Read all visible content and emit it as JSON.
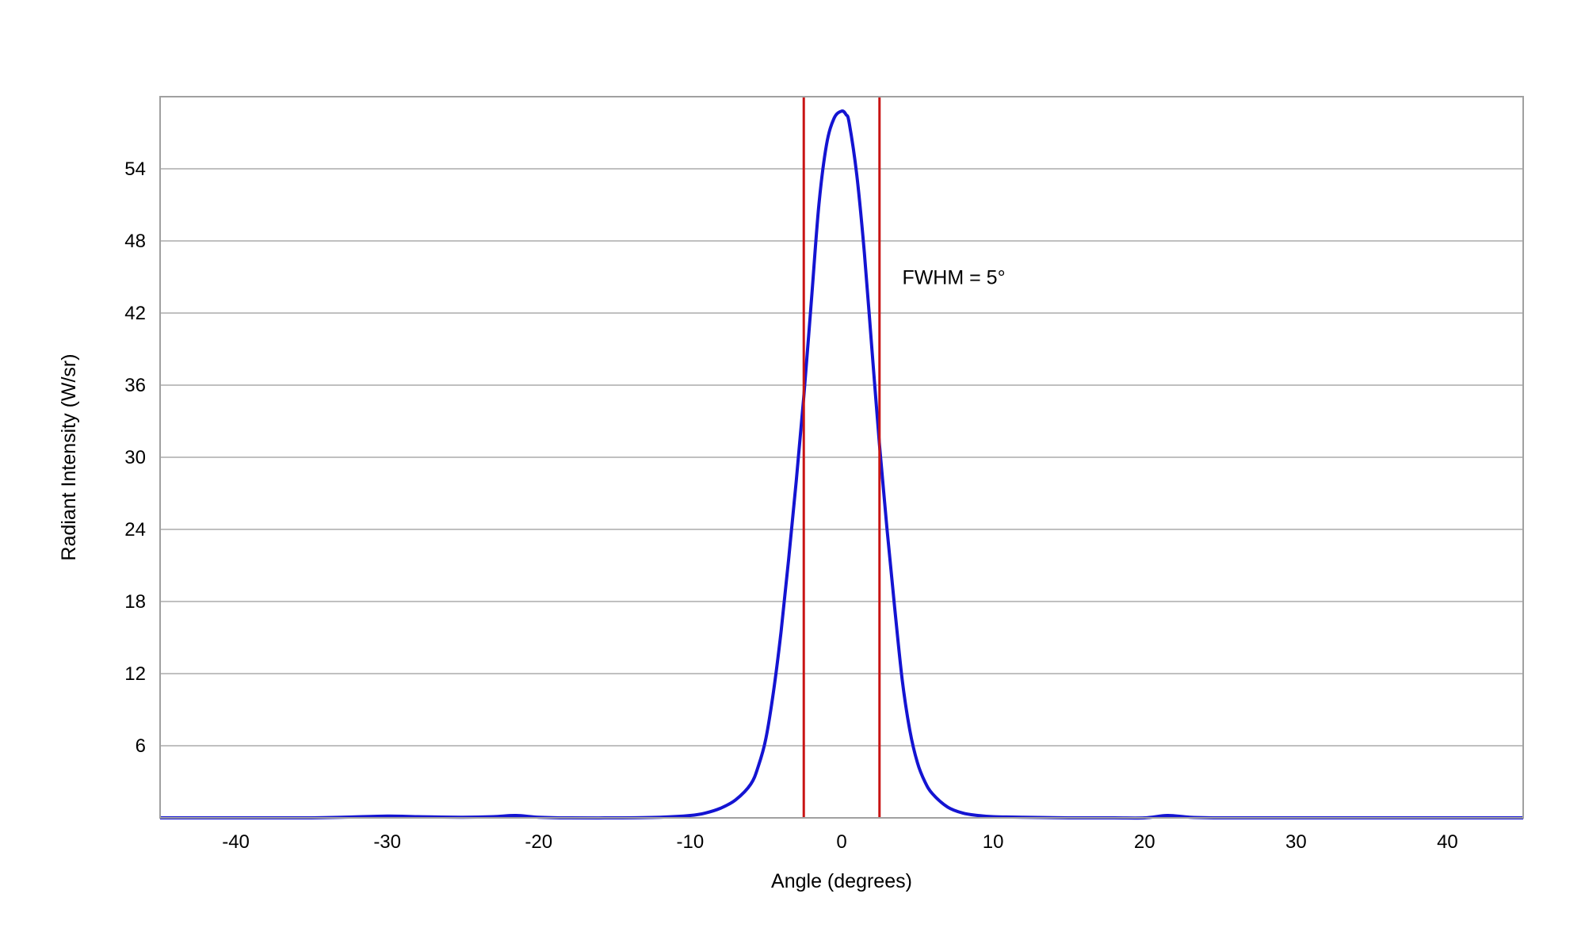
{
  "chart_data": {
    "type": "line",
    "title": "",
    "xlabel": "Angle (degrees)",
    "ylabel": "Radiant Intensity (W/sr)",
    "xlim": [
      -45,
      45
    ],
    "ylim": [
      0,
      60
    ],
    "xticks": [
      -40,
      -30,
      -20,
      -10,
      0,
      10,
      20,
      30,
      40
    ],
    "yticks": [
      6,
      12,
      18,
      24,
      30,
      36,
      42,
      48,
      54
    ],
    "grid": "horizontal",
    "legend": "none",
    "series": [
      {
        "color": "#1414d2",
        "x": [
          -45,
          -40,
          -35,
          -33,
          -30,
          -28,
          -25,
          -23,
          -21.5,
          -20,
          -18,
          -15,
          -12,
          -10,
          -9,
          -8,
          -7,
          -6,
          -5.5,
          -5,
          -4.5,
          -4,
          -3.5,
          -3,
          -2.5,
          -2,
          -1.5,
          -1,
          -0.5,
          0,
          0.3,
          0.5,
          1,
          1.5,
          2,
          2.5,
          3,
          3.5,
          4,
          4.5,
          5,
          5.5,
          6,
          7,
          8,
          9,
          10,
          12,
          15,
          18,
          20,
          21.5,
          23,
          25,
          30,
          35,
          40,
          45
        ],
        "y": [
          0,
          0,
          0,
          0.05,
          0.15,
          0.1,
          0.05,
          0.1,
          0.2,
          0.05,
          0,
          0,
          0.05,
          0.2,
          0.4,
          0.8,
          1.5,
          2.8,
          4.3,
          6.6,
          10.5,
          15.5,
          21.5,
          28,
          35,
          43,
          51,
          56,
          58.2,
          58.8,
          58.5,
          57.8,
          53.5,
          47,
          39,
          31,
          24,
          17.5,
          11.5,
          7.3,
          4.6,
          3,
          2,
          0.9,
          0.4,
          0.2,
          0.1,
          0.05,
          0,
          0,
          0,
          0.2,
          0.05,
          0,
          0,
          0,
          0,
          0
        ]
      }
    ],
    "vlines": [
      {
        "x": -2.5,
        "color": "#c81414"
      },
      {
        "x": 2.5,
        "color": "#c81414"
      }
    ],
    "annotations": [
      {
        "text": "FWHM = 5°",
        "x": 4,
        "y": 45
      }
    ]
  },
  "colors": {
    "grid": "#c0c0c0",
    "frame": "#a0a0a0",
    "curve": "#1414d2",
    "marker_lines": "#c81414"
  }
}
